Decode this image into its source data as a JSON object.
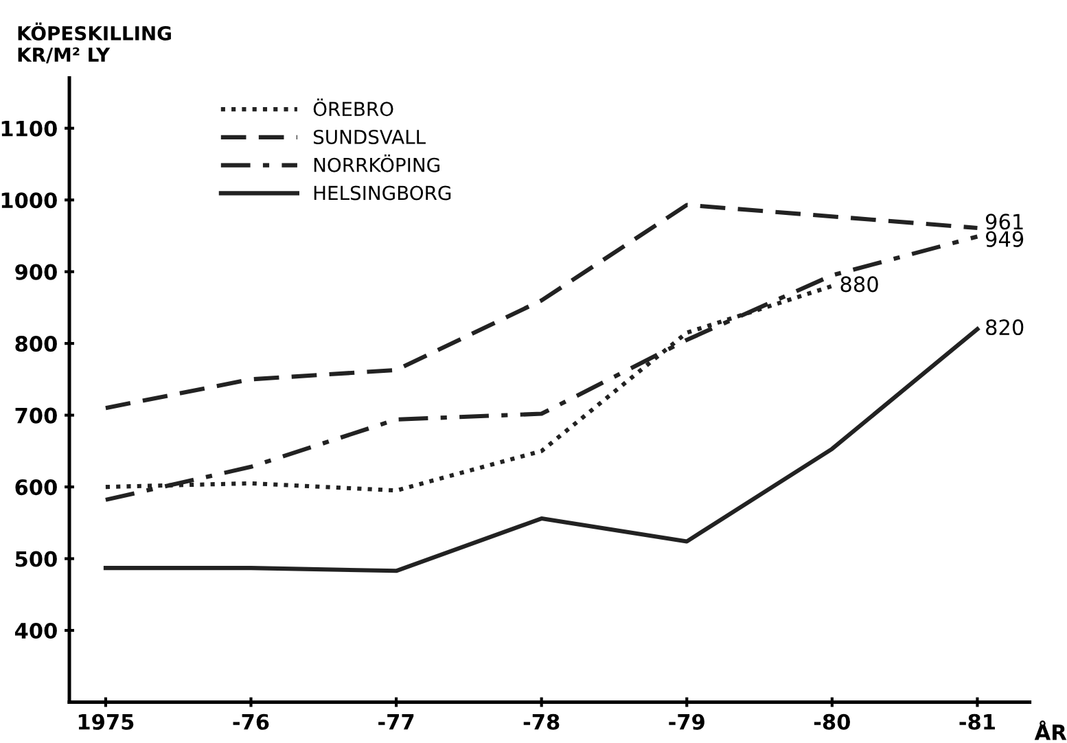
{
  "chart_data": {
    "type": "line",
    "ylabel": "KÖPESKILLING\nKR/M² LY",
    "xlabel": "ÅR",
    "categories": [
      "1975",
      "-76",
      "-77",
      "-78",
      "-79",
      "-80",
      "-81"
    ],
    "ylim": [
      300,
      1170
    ],
    "yticks": [
      400,
      500,
      600,
      700,
      800,
      900,
      1000,
      1100
    ],
    "grid": false,
    "legend": "top left",
    "marker": "none",
    "series": [
      {
        "name": "ÖREBRO",
        "color": "#222222",
        "line_style": "dotted",
        "values": [
          600,
          605,
          595,
          650,
          815,
          880,
          null
        ],
        "value_labels": [
          null,
          null,
          null,
          null,
          null,
          "880",
          null
        ]
      },
      {
        "name": "SUNDSVALL",
        "color": "#222222",
        "line_style": "dashed",
        "values": [
          710,
          750,
          763,
          860,
          993,
          null,
          961
        ],
        "value_labels": [
          null,
          null,
          null,
          null,
          null,
          null,
          "961"
        ]
      },
      {
        "name": "NORRKÖPING",
        "color": "#222222",
        "line_style": "dashdot",
        "values": [
          582,
          628,
          694,
          702,
          805,
          895,
          949
        ],
        "value_labels": [
          null,
          null,
          null,
          null,
          null,
          null,
          "949"
        ]
      },
      {
        "name": "HELSINGBORG",
        "color": "#222222",
        "line_style": "solid",
        "values": [
          487,
          487,
          483,
          556,
          524,
          653,
          820
        ],
        "value_labels": [
          null,
          null,
          null,
          null,
          null,
          null,
          "820"
        ]
      }
    ]
  }
}
